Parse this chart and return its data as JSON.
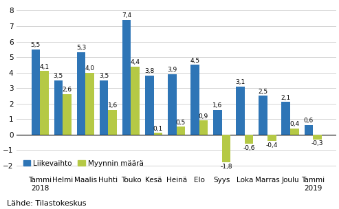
{
  "categories": [
    "Tammi\n2018",
    "Helmi",
    "Maalis",
    "Huhti",
    "Touko",
    "Kesä",
    "Heinä",
    "Elo",
    "Syys",
    "Loka",
    "Marras",
    "Joulu",
    "Tammi\n2019"
  ],
  "liikevaihto": [
    5.5,
    3.5,
    5.3,
    3.5,
    7.4,
    3.8,
    3.9,
    4.5,
    1.6,
    3.1,
    2.5,
    2.1,
    0.6
  ],
  "myynnin_maara": [
    4.1,
    2.6,
    4.0,
    1.6,
    4.4,
    0.1,
    0.5,
    0.9,
    -1.8,
    -0.6,
    -0.4,
    0.4,
    -0.3
  ],
  "bar_color_liike": "#2e75b6",
  "bar_color_myynti": "#b5c945",
  "ylim": [
    -2.5,
    8.5
  ],
  "yticks": [
    -2,
    -1,
    0,
    1,
    2,
    3,
    4,
    5,
    6,
    7,
    8
  ],
  "legend_labels": [
    "Liikevaihto",
    "Myynnin määrä"
  ],
  "source_text": "Lähde: Tilastokeskus",
  "label_fontsize": 6.5,
  "axis_fontsize": 7.5,
  "source_fontsize": 8,
  "bar_width": 0.38
}
